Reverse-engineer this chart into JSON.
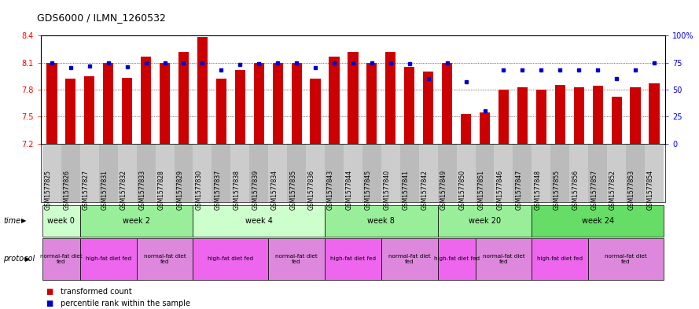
{
  "title": "GDS6000 / ILMN_1260532",
  "samples": [
    "GSM1577825",
    "GSM1577826",
    "GSM1577827",
    "GSM1577831",
    "GSM1577832",
    "GSM1577833",
    "GSM1577828",
    "GSM1577829",
    "GSM1577830",
    "GSM1577837",
    "GSM1577838",
    "GSM1577839",
    "GSM1577834",
    "GSM1577835",
    "GSM1577836",
    "GSM1577843",
    "GSM1577844",
    "GSM1577845",
    "GSM1577840",
    "GSM1577841",
    "GSM1577842",
    "GSM1577849",
    "GSM1577850",
    "GSM1577851",
    "GSM1577846",
    "GSM1577847",
    "GSM1577848",
    "GSM1577855",
    "GSM1577856",
    "GSM1577857",
    "GSM1577852",
    "GSM1577853",
    "GSM1577854"
  ],
  "bar_values": [
    8.1,
    7.92,
    7.95,
    8.1,
    7.93,
    8.17,
    8.1,
    8.22,
    8.38,
    7.92,
    8.02,
    8.1,
    8.1,
    8.1,
    7.92,
    8.17,
    8.22,
    8.1,
    8.22,
    8.05,
    8.0,
    8.1,
    7.53,
    7.55,
    7.8,
    7.83,
    7.8,
    7.85,
    7.83,
    7.84,
    7.72,
    7.83,
    7.87
  ],
  "blue_values": [
    75,
    70,
    72,
    75,
    71,
    75,
    75,
    75,
    75,
    68,
    73,
    74,
    75,
    75,
    70,
    75,
    75,
    75,
    75,
    74,
    60,
    75,
    57,
    30,
    68,
    68,
    68,
    68,
    68,
    68,
    60,
    68,
    75
  ],
  "ylim_left": [
    7.2,
    8.4
  ],
  "ylim_right": [
    0,
    100
  ],
  "yticks_left": [
    7.2,
    7.5,
    7.8,
    8.1,
    8.4
  ],
  "yticks_right": [
    0,
    25,
    50,
    75,
    100
  ],
  "ytick_labels_right": [
    "0",
    "25",
    "50",
    "75",
    "100%"
  ],
  "bar_color": "#cc0000",
  "blue_color": "#0000cc",
  "time_groups": [
    {
      "label": "week 0",
      "start": 0,
      "end": 2,
      "color": "#ccffcc"
    },
    {
      "label": "week 2",
      "start": 2,
      "end": 8,
      "color": "#99ee99"
    },
    {
      "label": "week 4",
      "start": 8,
      "end": 15,
      "color": "#ccffcc"
    },
    {
      "label": "week 8",
      "start": 15,
      "end": 21,
      "color": "#99ee99"
    },
    {
      "label": "week 20",
      "start": 21,
      "end": 26,
      "color": "#99ee99"
    },
    {
      "label": "week 24",
      "start": 26,
      "end": 33,
      "color": "#66dd66"
    }
  ],
  "protocol_groups": [
    {
      "label": "normal-fat diet\nfed",
      "start": 0,
      "end": 2,
      "color": "#dd88dd"
    },
    {
      "label": "high-fat diet fed",
      "start": 2,
      "end": 5,
      "color": "#ee66ee"
    },
    {
      "label": "normal-fat diet\nfed",
      "start": 5,
      "end": 8,
      "color": "#dd88dd"
    },
    {
      "label": "high-fat diet fed",
      "start": 8,
      "end": 12,
      "color": "#ee66ee"
    },
    {
      "label": "normal-fat diet\nfed",
      "start": 12,
      "end": 15,
      "color": "#dd88dd"
    },
    {
      "label": "high-fat diet fed",
      "start": 15,
      "end": 18,
      "color": "#ee66ee"
    },
    {
      "label": "normal-fat diet\nfed",
      "start": 18,
      "end": 21,
      "color": "#dd88dd"
    },
    {
      "label": "high-fat diet fed",
      "start": 21,
      "end": 23,
      "color": "#ee66ee"
    },
    {
      "label": "normal-fat diet\nfed",
      "start": 23,
      "end": 26,
      "color": "#dd88dd"
    },
    {
      "label": "high-fat diet fed",
      "start": 26,
      "end": 29,
      "color": "#ee66ee"
    },
    {
      "label": "normal-fat diet\nfed",
      "start": 29,
      "end": 33,
      "color": "#dd88dd"
    }
  ],
  "tick_bg_colors": [
    "#cccccc",
    "#bbbbbb"
  ],
  "fig_width": 8.89,
  "fig_height": 3.93,
  "dpi": 100
}
